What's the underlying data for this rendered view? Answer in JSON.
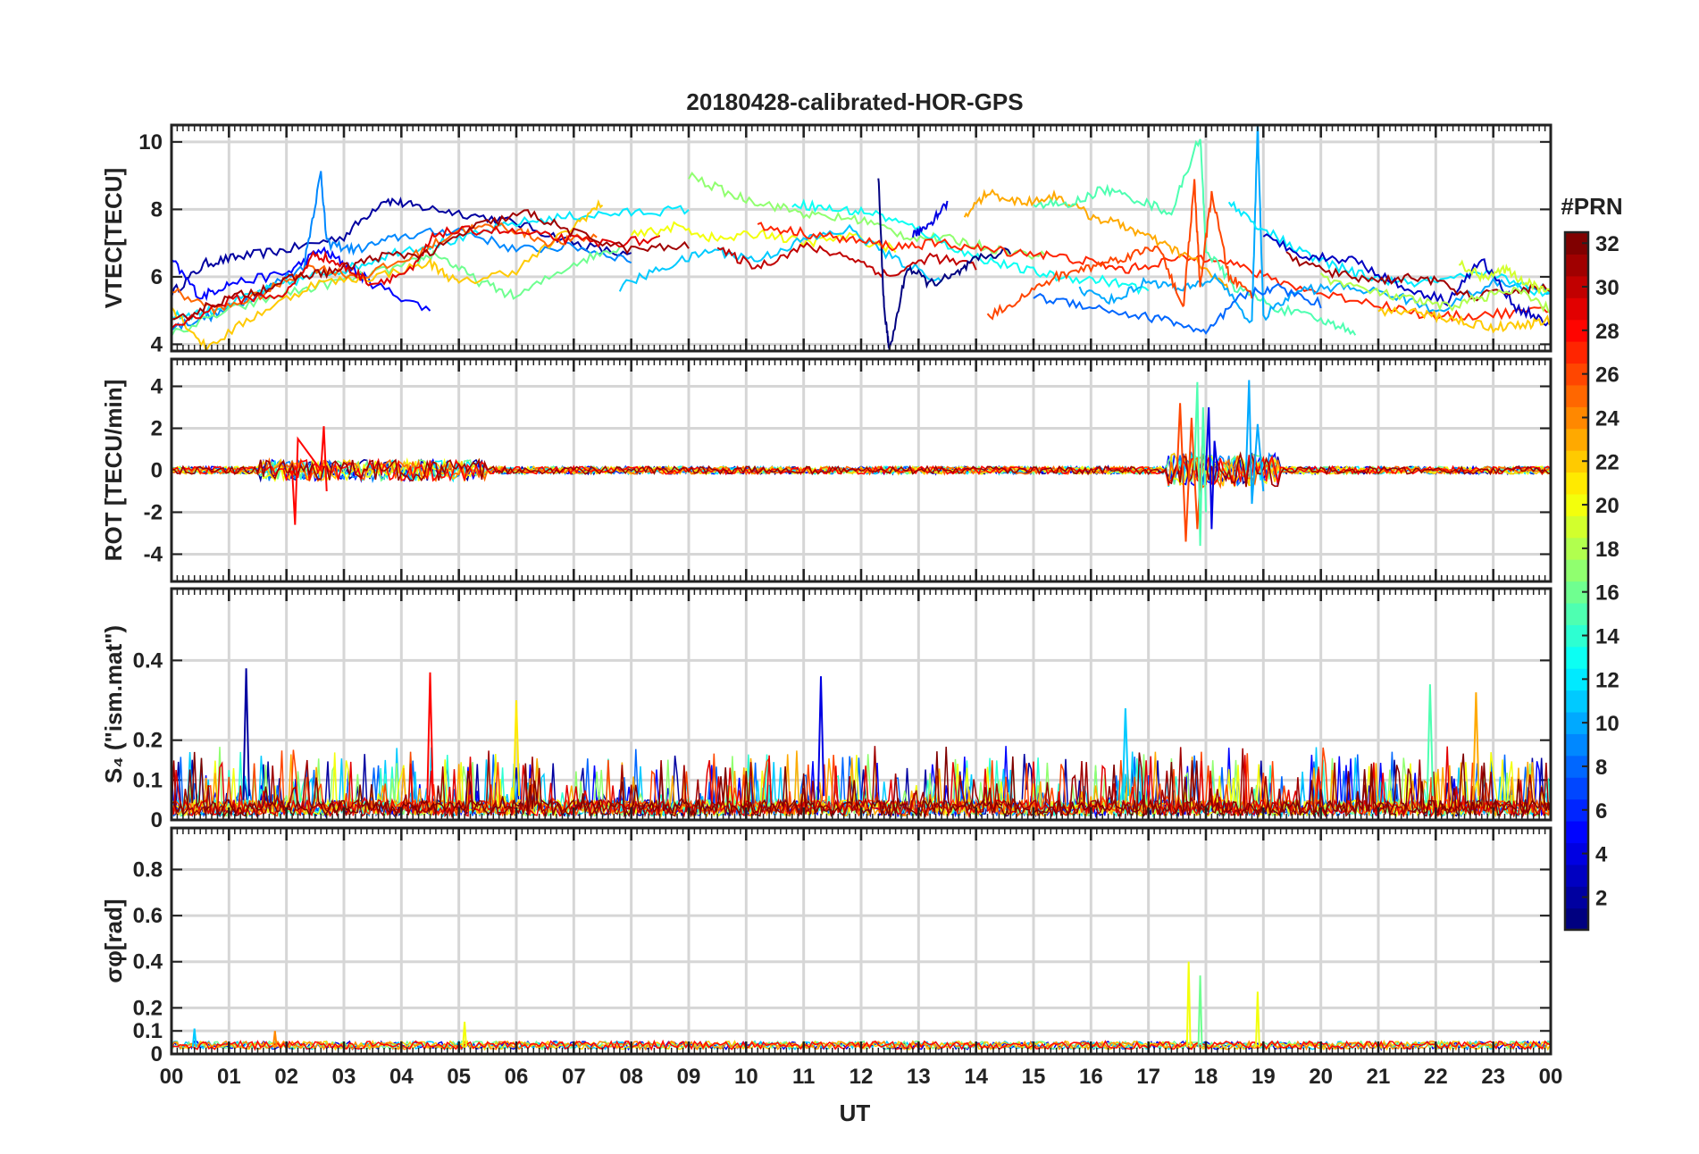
{
  "title": "20180428-calibrated-HOR-GPS",
  "colorbar": {
    "label": "#PRN",
    "colormap": "jet",
    "range": [
      1,
      32
    ],
    "ticks": [
      "2",
      "4",
      "6",
      "8",
      "10",
      "12",
      "14",
      "16",
      "18",
      "20",
      "22",
      "24",
      "26",
      "28",
      "30",
      "32"
    ]
  },
  "chart_data": [
    {
      "id": "vtec",
      "type": "line",
      "ylabel": "VTEC[TECU]",
      "ylim": [
        3.8,
        10.5
      ],
      "yticks": [
        4,
        6,
        8,
        10
      ],
      "grid": true,
      "series": [
        {
          "prn": 2,
          "x": [
            0,
            0.6,
            1.2,
            2.0,
            3.0,
            3.7,
            4.2,
            5.0,
            6.0,
            7.0,
            8.0
          ],
          "y": [
            5.5,
            6.4,
            6.6,
            6.8,
            7.2,
            8.3,
            8.1,
            7.9,
            7.6,
            7.0,
            6.6
          ]
        },
        {
          "prn": 5,
          "x": [
            0,
            0.5,
            1.0,
            2.0,
            2.6,
            3.0,
            3.5,
            4.5
          ],
          "y": [
            6.5,
            5.4,
            5.8,
            6.1,
            6.8,
            6.4,
            5.8,
            5.0
          ]
        },
        {
          "prn": 9,
          "x": [
            0,
            0.8,
            1.5,
            2.3,
            2.6,
            2.7,
            3.2,
            4.0,
            5.0,
            6.0,
            7.0,
            8.0
          ],
          "y": [
            4.5,
            4.9,
            5.5,
            6.3,
            9.1,
            7.0,
            6.8,
            7.2,
            7.4,
            6.8,
            6.9,
            6.5
          ]
        },
        {
          "prn": 12,
          "x": [
            0,
            0.7,
            1.6,
            2.4,
            3.2,
            4.0,
            5.0,
            6.0,
            7.0,
            8.0,
            9.0
          ],
          "y": [
            4.8,
            5.0,
            5.6,
            6.0,
            6.3,
            6.8,
            7.1,
            7.6,
            7.8,
            7.9,
            8.0
          ]
        },
        {
          "prn": 16,
          "x": [
            0,
            1.0,
            2.0,
            3.0,
            4.0,
            4.6,
            5.3,
            6.0,
            7.0,
            7.8
          ],
          "y": [
            4.3,
            5.0,
            5.5,
            5.9,
            6.3,
            6.7,
            5.9,
            5.4,
            6.4,
            6.9
          ]
        },
        {
          "prn": 22,
          "x": [
            0,
            0.6,
            1.5,
            2.5,
            3.5,
            4.5,
            5.0,
            6.0,
            7.0,
            7.5
          ],
          "y": [
            5.1,
            3.9,
            4.9,
            5.8,
            6.0,
            6.4,
            5.8,
            6.2,
            7.5,
            8.2
          ]
        },
        {
          "prn": 25,
          "x": [
            0,
            0.8,
            1.6,
            2.4,
            3.3,
            4.2,
            5.0,
            5.8,
            6.6,
            7.4
          ],
          "y": [
            5.6,
            5.0,
            5.5,
            6.3,
            6.0,
            6.6,
            7.4,
            7.5,
            7.0,
            7.2
          ]
        },
        {
          "prn": 29,
          "x": [
            0,
            1.0,
            2.0,
            2.5,
            3.0,
            3.5,
            4.2,
            4.6,
            5.5,
            6.5,
            7.5,
            8.5
          ],
          "y": [
            4.5,
            5.3,
            5.5,
            6.7,
            6.3,
            5.8,
            6.2,
            7.3,
            7.4,
            7.2,
            7.0,
            7.1
          ]
        },
        {
          "prn": 31,
          "x": [
            0,
            0.7,
            1.5,
            2.2,
            2.9,
            3.6,
            4.5,
            5.3,
            6.2,
            7.0,
            8.0,
            9.0
          ],
          "y": [
            4.6,
            5.2,
            5.6,
            6.0,
            6.2,
            6.6,
            6.7,
            7.5,
            7.9,
            7.3,
            6.8,
            6.9
          ]
        },
        {
          "prn": 17,
          "x": [
            9.0,
            9.8,
            10.5,
            11.2,
            12.0,
            12.8,
            13.6,
            14.4,
            15.2
          ],
          "y": [
            9.0,
            8.4,
            8.1,
            7.8,
            7.7,
            7.2,
            7.1,
            6.8,
            6.6
          ]
        },
        {
          "prn": 13,
          "x": [
            10.8,
            11.5,
            12.2,
            13.0,
            13.8,
            14.6,
            15.4,
            16.2,
            17.0
          ],
          "y": [
            8.2,
            8.0,
            7.9,
            7.4,
            6.7,
            6.3,
            6.0,
            5.9,
            5.6
          ]
        },
        {
          "prn": 20,
          "x": [
            8.0,
            8.8,
            9.5,
            10.3,
            11.0,
            11.8,
            12.6
          ],
          "y": [
            7.2,
            7.5,
            7.1,
            7.3,
            7.0,
            7.2,
            6.8
          ]
        },
        {
          "prn": 11,
          "x": [
            7.8,
            8.6,
            9.4,
            10.2,
            11.0,
            11.8,
            12.6,
            13.4
          ],
          "y": [
            5.7,
            6.3,
            6.8,
            6.5,
            7.1,
            7.4,
            6.5,
            5.9
          ]
        },
        {
          "prn": 30,
          "x": [
            9.5,
            10.2,
            11.0,
            11.8,
            12.5,
            13.2,
            14.0
          ],
          "y": [
            6.8,
            6.3,
            6.9,
            6.6,
            6.0,
            6.6,
            6.3
          ]
        },
        {
          "prn": 1,
          "x": [
            12.3,
            12.4,
            12.5,
            12.8,
            13.2,
            13.6,
            14.0,
            14.6
          ],
          "y": [
            9.0,
            5.0,
            3.8,
            6.3,
            5.8,
            6.0,
            6.5,
            6.8
          ]
        },
        {
          "prn": 4,
          "x": [
            12.9,
            13.2,
            13.5
          ],
          "y": [
            7.2,
            7.6,
            8.2
          ]
        },
        {
          "prn": 27,
          "x": [
            10.2,
            11.0,
            11.8,
            12.6,
            13.4,
            14.2,
            15.0,
            15.8,
            16.6,
            17.4,
            18.2,
            19.0,
            20.0,
            21.0,
            22.0,
            23.0,
            24.0
          ],
          "y": [
            7.5,
            7.3,
            7.1,
            6.9,
            7.0,
            6.8,
            6.7,
            6.5,
            6.2,
            6.5,
            6.6,
            6.0,
            5.5,
            5.2,
            4.8,
            4.9,
            5.0
          ]
        },
        {
          "prn": 23,
          "x": [
            13.8,
            14.2,
            14.8,
            15.4,
            16.0,
            16.6,
            17.2,
            17.8,
            18.4
          ],
          "y": [
            7.8,
            8.5,
            8.2,
            8.4,
            7.8,
            7.5,
            7.0,
            6.5,
            5.6
          ]
        },
        {
          "prn": 15,
          "x": [
            15.0,
            15.6,
            16.2,
            16.8,
            17.4,
            17.9,
            18.0,
            18.5,
            19.2,
            20.0,
            20.6
          ],
          "y": [
            8.2,
            8.1,
            8.6,
            8.3,
            7.9,
            10.2,
            6.8,
            5.7,
            5.1,
            4.7,
            4.4
          ]
        },
        {
          "prn": 10,
          "x": [
            15.8,
            16.4,
            17.0,
            17.6,
            18.2,
            18.8,
            18.9,
            19.0,
            19.6,
            20.4,
            21.2,
            22.0,
            23.0,
            24.0
          ],
          "y": [
            5.6,
            5.3,
            5.9,
            5.6,
            6.0,
            4.6,
            10.5,
            4.8,
            5.6,
            5.7,
            5.5,
            5.0,
            5.8,
            5.6
          ]
        },
        {
          "prn": 8,
          "x": [
            15.0,
            15.8,
            16.6,
            17.4,
            18.0,
            18.6,
            19.2,
            20.0
          ],
          "y": [
            5.4,
            5.2,
            4.9,
            4.7,
            4.3,
            5.4,
            5.7,
            5.2
          ]
        },
        {
          "prn": 26,
          "x": [
            14.2,
            14.8,
            15.4,
            16.0,
            16.6,
            17.2,
            17.6,
            17.8,
            17.9,
            18.1,
            18.4,
            18.8
          ],
          "y": [
            4.8,
            5.4,
            6.0,
            6.3,
            6.6,
            6.9,
            5.0,
            8.8,
            5.7,
            8.5,
            6.0,
            5.5
          ]
        },
        {
          "prn": 12,
          "x": [
            18.4,
            19.0,
            19.8,
            20.6,
            21.4,
            22.2,
            23.0,
            24.0
          ],
          "y": [
            8.2,
            7.4,
            6.6,
            6.1,
            5.8,
            5.9,
            6.1,
            5.4
          ]
        },
        {
          "prn": 3,
          "x": [
            19.0,
            19.8,
            20.6,
            21.4,
            22.2,
            22.8,
            23.4,
            24.0
          ],
          "y": [
            7.2,
            6.6,
            6.5,
            5.7,
            5.3,
            6.5,
            5.1,
            4.6
          ]
        },
        {
          "prn": 31,
          "x": [
            19.4,
            20.2,
            21.0,
            21.8,
            22.6,
            23.4,
            24.0
          ],
          "y": [
            6.6,
            6.1,
            5.9,
            6.0,
            5.4,
            5.6,
            5.7
          ]
        },
        {
          "prn": 18,
          "x": [
            20.0,
            20.8,
            21.6,
            22.2,
            22.8,
            23.4,
            24.0
          ],
          "y": [
            6.0,
            5.6,
            5.3,
            5.1,
            5.4,
            5.6,
            5.0
          ]
        },
        {
          "prn": 22,
          "x": [
            21.0,
            21.8,
            22.4,
            23.0,
            23.6,
            24.0
          ],
          "y": [
            5.0,
            4.9,
            4.7,
            4.5,
            4.6,
            4.7
          ]
        },
        {
          "prn": 19,
          "x": [
            22.4,
            22.8,
            23.2,
            23.6,
            24.0
          ],
          "y": [
            6.4,
            6.0,
            6.2,
            5.8,
            5.5
          ]
        }
      ]
    },
    {
      "id": "rot",
      "type": "line",
      "ylabel": "ROT [TECU/min]",
      "ylim": [
        -5.3,
        5.3
      ],
      "yticks": [
        -4,
        -2,
        0,
        2,
        4
      ],
      "grid": true,
      "series": [
        {
          "prn": 28,
          "x": [
            2.1,
            2.15,
            2.2,
            2.6,
            2.65,
            2.7
          ],
          "y": [
            0,
            -2.6,
            1.5,
            0,
            2.1,
            -1.0
          ]
        },
        {
          "prn": 26,
          "x": [
            17.5,
            17.55,
            17.65,
            17.75,
            17.85,
            17.95
          ],
          "y": [
            0,
            3.2,
            -3.4,
            2.5,
            -2.8,
            1.8
          ]
        },
        {
          "prn": 15,
          "x": [
            17.8,
            17.85,
            17.9,
            17.95,
            18.0
          ],
          "y": [
            0,
            4.2,
            -3.6,
            3.0,
            -2.0
          ]
        },
        {
          "prn": 10,
          "x": [
            18.7,
            18.75,
            18.8,
            18.9,
            19.0
          ],
          "y": [
            0,
            4.3,
            -1.6,
            2.2,
            -1.0
          ]
        },
        {
          "prn": 4,
          "x": [
            18.0,
            18.05,
            18.1,
            18.15,
            18.2
          ],
          "y": [
            0,
            3.0,
            -2.8,
            1.4,
            0
          ]
        }
      ]
    },
    {
      "id": "s4",
      "type": "line",
      "ylabel": "S₄ (\"ism.mat\")",
      "ylim": [
        0,
        0.58
      ],
      "yticks": [
        0,
        0.1,
        0.2,
        0.4
      ],
      "grid": true,
      "series": [
        {
          "prn": 2,
          "x": [
            1.3
          ],
          "y": [
            0.38
          ]
        },
        {
          "prn": 28,
          "x": [
            4.5
          ],
          "y": [
            0.37
          ]
        },
        {
          "prn": 21,
          "x": [
            6.0
          ],
          "y": [
            0.3
          ]
        },
        {
          "prn": 4,
          "x": [
            11.3
          ],
          "y": [
            0.36
          ]
        },
        {
          "prn": 15,
          "x": [
            21.9
          ],
          "y": [
            0.34
          ]
        },
        {
          "prn": 23,
          "x": [
            22.7
          ],
          "y": [
            0.32
          ]
        },
        {
          "prn": 11,
          "x": [
            16.6
          ],
          "y": [
            0.28
          ]
        }
      ]
    },
    {
      "id": "sigma_phi",
      "type": "line",
      "ylabel": "σφ[rad]",
      "ylim": [
        0,
        0.98
      ],
      "yticks": [
        0,
        0.1,
        0.2,
        0.4,
        0.6,
        0.8
      ],
      "grid": true,
      "series": [
        {
          "prn": 20,
          "x": [
            17.7
          ],
          "y": [
            0.4
          ]
        },
        {
          "prn": 16,
          "x": [
            17.9
          ],
          "y": [
            0.34
          ]
        },
        {
          "prn": 20,
          "x": [
            18.9
          ],
          "y": [
            0.27
          ]
        },
        {
          "prn": 20,
          "x": [
            5.1
          ],
          "y": [
            0.14
          ]
        },
        {
          "prn": 11,
          "x": [
            0.4
          ],
          "y": [
            0.11
          ]
        },
        {
          "prn": 24,
          "x": [
            1.8
          ],
          "y": [
            0.1
          ]
        }
      ]
    }
  ],
  "xaxis": {
    "xlabel": "UT",
    "xlim": [
      0,
      24
    ],
    "ticklabels": [
      "00",
      "01",
      "02",
      "03",
      "04",
      "05",
      "06",
      "07",
      "08",
      "09",
      "10",
      "11",
      "12",
      "13",
      "14",
      "15",
      "16",
      "17",
      "18",
      "19",
      "20",
      "21",
      "22",
      "23",
      "00"
    ]
  }
}
